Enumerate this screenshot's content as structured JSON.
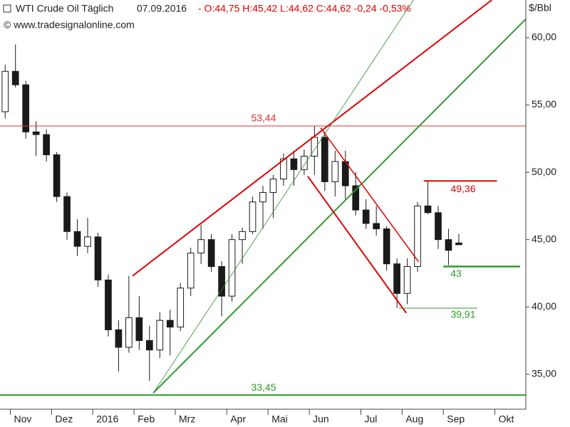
{
  "header": {
    "title": "WTI Crude Oil Täglich",
    "date": "07.09.2016",
    "quote": "- O:44,75 H:45,42 L:44,62 C:44,62 -0,24 -0,53%",
    "source": "© www.tradesignalonline.com"
  },
  "chart_data": {
    "type": "candlestick",
    "y_label": "$/Bbl",
    "categories": [
      null,
      "Nov",
      null,
      null,
      null,
      "Dez",
      null,
      null,
      null,
      "2016",
      null,
      null,
      null,
      "Feb",
      null,
      null,
      null,
      "Mrz",
      null,
      null,
      null,
      null,
      "Apr",
      null,
      null,
      null,
      "Mai",
      null,
      null,
      null,
      "Jun",
      null,
      null,
      null,
      null,
      "Jul",
      null,
      null,
      null,
      "Aug",
      null,
      null,
      null,
      "Sep",
      null,
      null,
      null,
      null,
      "Okt",
      null,
      null
    ],
    "open": [
      54.5,
      57.5,
      56.5,
      53.0,
      52.8,
      51.3,
      48.2,
      45.6,
      44.5,
      45.2,
      42.0,
      38.3,
      37.0,
      39.2,
      37.5,
      36.8,
      39.0,
      38.5,
      41.4,
      44.0,
      45.0,
      43.0,
      40.8,
      45.0,
      45.6,
      47.8,
      48.5,
      49.5,
      51.0,
      50.2,
      51.2,
      52.6,
      49.3,
      50.8,
      49.0,
      47.2,
      46.2,
      45.8,
      43.2,
      41.0,
      43.0,
      47.5,
      47.0,
      45.0,
      44.75,
      null,
      null,
      null,
      null,
      null,
      null
    ],
    "high": [
      58.0,
      59.5,
      56.8,
      53.8,
      53.2,
      51.5,
      48.5,
      46.5,
      46.6,
      45.5,
      42.4,
      39.0,
      42.3,
      40.8,
      38.6,
      39.6,
      39.8,
      41.8,
      44.4,
      46.1,
      45.4,
      43.4,
      45.4,
      45.9,
      48.2,
      49.0,
      49.8,
      51.4,
      51.6,
      51.7,
      53.44,
      53.0,
      51.6,
      51.6,
      50.0,
      48.0,
      47.5,
      46.0,
      43.6,
      43.6,
      47.8,
      49.36,
      47.5,
      45.8,
      45.42,
      null,
      null,
      null,
      null,
      null,
      null
    ],
    "low": [
      54.0,
      56.3,
      52.5,
      51.2,
      50.8,
      47.8,
      45.0,
      43.8,
      44.0,
      41.5,
      37.8,
      35.2,
      36.6,
      36.8,
      34.5,
      36.2,
      36.4,
      38.2,
      40.8,
      43.2,
      42.6,
      39.3,
      40.4,
      43.2,
      45.4,
      45.8,
      46.6,
      49.0,
      49.0,
      49.8,
      49.8,
      48.6,
      48.2,
      48.0,
      46.8,
      45.8,
      45.3,
      42.7,
      39.91,
      40.2,
      42.6,
      46.9,
      44.3,
      43.1,
      44.62,
      null,
      null,
      null,
      null,
      null,
      null
    ],
    "close": [
      57.5,
      56.5,
      53.0,
      52.8,
      51.3,
      48.2,
      45.6,
      44.5,
      45.2,
      42.0,
      38.3,
      37.0,
      39.2,
      37.5,
      36.8,
      39.0,
      38.5,
      41.4,
      44.0,
      45.0,
      43.0,
      40.8,
      45.0,
      45.6,
      47.8,
      48.5,
      49.5,
      51.0,
      50.2,
      51.2,
      52.6,
      49.3,
      50.8,
      49.0,
      47.2,
      46.2,
      45.8,
      43.2,
      41.0,
      43.0,
      47.5,
      47.0,
      45.0,
      44.2,
      44.62,
      null,
      null,
      null,
      null,
      null,
      null
    ],
    "up_color": "#ffffff",
    "down_color": "#1a1a1a",
    "ylim": [
      32.4,
      62.8
    ],
    "yticks": [
      {
        "value": 35,
        "label": "35,00"
      },
      {
        "value": 40,
        "label": "40,00"
      },
      {
        "value": 45,
        "label": "45,00"
      },
      {
        "value": 50,
        "label": "50,00"
      },
      {
        "value": 55,
        "label": "55,00"
      },
      {
        "value": 60,
        "label": "60,00"
      }
    ],
    "trendlines": [
      {
        "color": "#e03030",
        "width": 1,
        "points": [
          [
            -0.5,
            53.44
          ],
          [
            50.5,
            53.44
          ]
        ],
        "label": "53,44"
      },
      {
        "color": "#e00000",
        "width": 2,
        "points": [
          [
            12.35,
            42.3
          ],
          [
            47.2,
            62.8
          ]
        ]
      },
      {
        "color": "#2e8b2e",
        "width": 0.8,
        "points": [
          [
            14.36,
            33.6
          ],
          [
            39.6,
            62.8
          ]
        ]
      },
      {
        "color": "#2e9a2e",
        "width": 2,
        "points": [
          [
            14.36,
            33.6
          ],
          [
            51.3,
            62.0
          ]
        ]
      },
      {
        "color": "#e00000",
        "width": 2,
        "points": [
          [
            29.35,
            49.7
          ],
          [
            38.9,
            39.55
          ]
        ]
      },
      {
        "color": "#e00000",
        "width": 1.5,
        "points": [
          [
            30.6,
            53.3
          ],
          [
            40.1,
            43.35
          ]
        ]
      },
      {
        "color": "#e00000",
        "width": 2,
        "points": [
          [
            40.6,
            49.36
          ],
          [
            47.7,
            49.36
          ]
        ],
        "label": "49,36"
      },
      {
        "color": "#2e9a2e",
        "width": 2.5,
        "points": [
          [
            42.5,
            43
          ],
          [
            49.95,
            43
          ]
        ],
        "label": "43"
      },
      {
        "color": "#2e9a2e",
        "width": 1,
        "points": [
          [
            38.2,
            39.91
          ],
          [
            45.8,
            39.91
          ]
        ],
        "label": "39,91"
      },
      {
        "color": "#2e9a2e",
        "width": 2,
        "points": [
          [
            -0.5,
            33.45
          ],
          [
            50.5,
            33.45
          ]
        ],
        "label": "33,45"
      }
    ]
  }
}
